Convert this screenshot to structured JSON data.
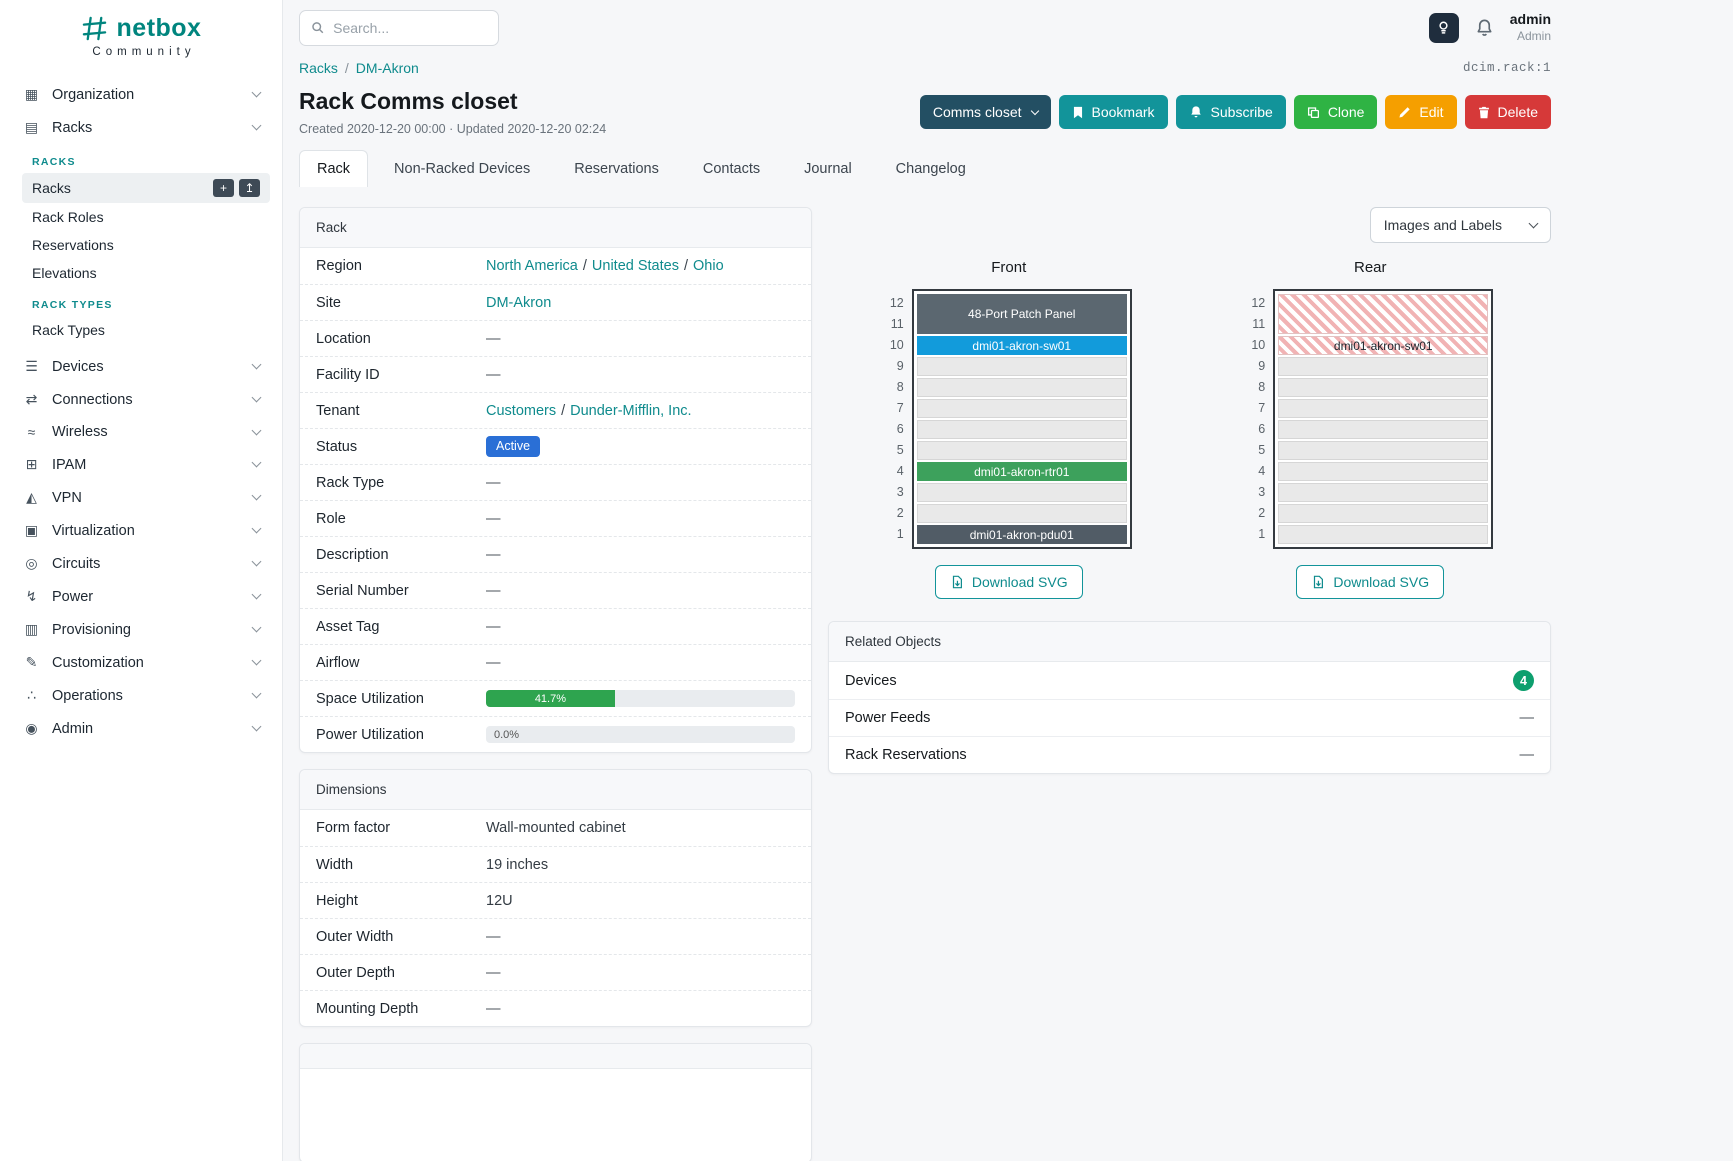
{
  "brand": {
    "name": "netbox",
    "tagline": "Community"
  },
  "topbar": {
    "search_placeholder": "Search...",
    "user": {
      "name": "admin",
      "role": "Admin"
    }
  },
  "sidebar": {
    "items": [
      {
        "type": "group",
        "label": "Organization",
        "icon": "organization-icon"
      },
      {
        "type": "group",
        "label": "Racks",
        "icon": "racks-icon",
        "expanded": true,
        "children": [
          {
            "type": "section",
            "label": "RACKS"
          },
          {
            "type": "link",
            "label": "Racks",
            "active": true,
            "actions": [
              {
                "name": "add-button",
                "icon": "add-icon"
              },
              {
                "name": "import-button",
                "icon": "import-icon"
              }
            ]
          },
          {
            "type": "link",
            "label": "Rack Roles"
          },
          {
            "type": "link",
            "label": "Reservations"
          },
          {
            "type": "link",
            "label": "Elevations"
          },
          {
            "type": "section",
            "label": "RACK TYPES"
          },
          {
            "type": "link",
            "label": "Rack Types"
          }
        ]
      },
      {
        "type": "group",
        "label": "Devices",
        "icon": "devices-icon"
      },
      {
        "type": "group",
        "label": "Connections",
        "icon": "connections-icon"
      },
      {
        "type": "group",
        "label": "Wireless",
        "icon": "wireless-icon"
      },
      {
        "type": "group",
        "label": "IPAM",
        "icon": "ipam-icon"
      },
      {
        "type": "group",
        "label": "VPN",
        "icon": "vpn-icon"
      },
      {
        "type": "group",
        "label": "Virtualization",
        "icon": "virtualization-icon"
      },
      {
        "type": "group",
        "label": "Circuits",
        "icon": "circuits-icon"
      },
      {
        "type": "group",
        "label": "Power",
        "icon": "power-icon"
      },
      {
        "type": "group",
        "label": "Provisioning",
        "icon": "provisioning-icon"
      },
      {
        "type": "group",
        "label": "Customization",
        "icon": "customization-icon"
      },
      {
        "type": "group",
        "label": "Operations",
        "icon": "operations-icon"
      },
      {
        "type": "group",
        "label": "Admin",
        "icon": "admin-icon"
      }
    ]
  },
  "breadcrumb": {
    "items": [
      "Racks",
      "DM-Akron"
    ],
    "object_id": "dcim.rack:1"
  },
  "header": {
    "title": "Rack Comms closet",
    "meta": "Created 2020-12-20 00:00 · Updated 2020-12-20 02:24",
    "buttons": [
      {
        "label": "Comms closet",
        "style": "dark",
        "dropdown": true
      },
      {
        "label": "Bookmark",
        "style": "teal",
        "icon": "bookmark-icon"
      },
      {
        "label": "Subscribe",
        "style": "teal",
        "icon": "bell-icon"
      },
      {
        "label": "Clone",
        "style": "green",
        "icon": "copy-icon"
      },
      {
        "label": "Edit",
        "style": "orange",
        "icon": "pencil-icon"
      },
      {
        "label": "Delete",
        "style": "red",
        "icon": "trash-icon"
      }
    ]
  },
  "tabs": [
    {
      "label": "Rack",
      "active": true
    },
    {
      "label": "Non-Racked Devices"
    },
    {
      "label": "Reservations"
    },
    {
      "label": "Contacts"
    },
    {
      "label": "Journal"
    },
    {
      "label": "Changelog"
    }
  ],
  "rack_card": {
    "title": "Rack",
    "rows": [
      {
        "label": "Region",
        "type": "links",
        "links": [
          "North America",
          "United States",
          "Ohio"
        ]
      },
      {
        "label": "Site",
        "type": "links",
        "links": [
          "DM-Akron"
        ]
      },
      {
        "label": "Location",
        "type": "text",
        "value": "—"
      },
      {
        "label": "Facility ID",
        "type": "text",
        "value": "—"
      },
      {
        "label": "Tenant",
        "type": "links",
        "links": [
          "Customers",
          "Dunder-Mifflin, Inc."
        ]
      },
      {
        "label": "Status",
        "type": "badge",
        "value": "Active",
        "color": "#2a6fd6"
      },
      {
        "label": "Rack Type",
        "type": "text",
        "value": "—"
      },
      {
        "label": "Role",
        "type": "text",
        "value": "—"
      },
      {
        "label": "Description",
        "type": "text",
        "value": "—"
      },
      {
        "label": "Serial Number",
        "type": "text",
        "value": "—"
      },
      {
        "label": "Asset Tag",
        "type": "text",
        "value": "—"
      },
      {
        "label": "Airflow",
        "type": "text",
        "value": "—"
      },
      {
        "label": "Space Utilization",
        "type": "progress",
        "percent": 41.7,
        "text": "41.7%",
        "color": "#2ea44f"
      },
      {
        "label": "Power Utilization",
        "type": "progress",
        "percent": 0,
        "text": "0.0%",
        "color": "#2ea44f"
      }
    ]
  },
  "dimensions_card": {
    "title": "Dimensions",
    "rows": [
      {
        "label": "Form factor",
        "type": "text",
        "value": "Wall-mounted cabinet"
      },
      {
        "label": "Width",
        "type": "text",
        "value": "19 inches"
      },
      {
        "label": "Height",
        "type": "text",
        "value": "12U"
      },
      {
        "label": "Outer Width",
        "type": "text",
        "value": "—"
      },
      {
        "label": "Outer Depth",
        "type": "text",
        "value": "—"
      },
      {
        "label": "Mounting Depth",
        "type": "text",
        "value": "—"
      }
    ]
  },
  "elevations": {
    "toggle_label": "Images and Labels",
    "download_label": "Download SVG",
    "units_total": 12,
    "views": [
      {
        "title": "Front",
        "devices": [
          {
            "name": "48-Port Patch Panel",
            "top_u": 12,
            "height": 2,
            "color": "#5b6770",
            "text_color": "#ffffff"
          },
          {
            "name": "dmi01-akron-sw01",
            "top_u": 10,
            "height": 1,
            "color": "#129bdb",
            "text_color": "#ffffff"
          },
          {
            "name": "dmi01-akron-rtr01",
            "top_u": 4,
            "height": 1,
            "color": "#3da15c",
            "text_color": "#ffffff"
          },
          {
            "name": "dmi01-akron-pdu01",
            "top_u": 1,
            "height": 1,
            "color": "#515c66",
            "text_color": "#ffffff"
          }
        ]
      },
      {
        "title": "Rear",
        "devices": [
          {
            "name": "",
            "top_u": 12,
            "height": 2,
            "ghost": true
          },
          {
            "name": "dmi01-akron-sw01",
            "top_u": 10,
            "height": 1,
            "ghost": true
          }
        ]
      }
    ]
  },
  "related_objects": {
    "title": "Related Objects",
    "rows": [
      {
        "label": "Devices",
        "count": "4"
      },
      {
        "label": "Power Feeds",
        "value": "—"
      },
      {
        "label": "Rack Reservations",
        "value": "—"
      }
    ]
  },
  "colors": {
    "brand_teal": "#00857e",
    "link_teal": "#0f8b8d",
    "button_teal": "#12949a",
    "dropdown_dark": "#234f63",
    "clone_green": "#2fb344",
    "edit_orange": "#f59f00",
    "delete_red": "#d63939",
    "status_active_blue": "#2a6fd6",
    "utilization_green": "#2ea44f",
    "device_blue": "#129bdb",
    "device_green": "#3da15c",
    "device_slate": "#5b6770",
    "count_badge_green": "#0e9f6e"
  }
}
